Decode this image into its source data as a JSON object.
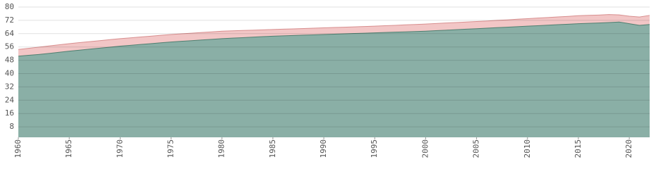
{
  "chart_data": {
    "type": "area",
    "x": [
      1960,
      1961,
      1962,
      1963,
      1964,
      1965,
      1966,
      1967,
      1968,
      1969,
      1970,
      1971,
      1972,
      1973,
      1974,
      1975,
      1976,
      1977,
      1978,
      1979,
      1980,
      1981,
      1982,
      1983,
      1984,
      1985,
      1986,
      1987,
      1988,
      1989,
      1990,
      1991,
      1992,
      1993,
      1994,
      1995,
      1996,
      1997,
      1998,
      1999,
      2000,
      2001,
      2002,
      2003,
      2004,
      2005,
      2006,
      2007,
      2008,
      2009,
      2010,
      2011,
      2012,
      2013,
      2014,
      2015,
      2016,
      2017,
      2018,
      2019,
      2020,
      2021,
      2022
    ],
    "series": [
      {
        "color": "#8aafa6",
        "values": [
          50.5,
          51.0,
          51.5,
          52.1,
          52.8,
          53.5,
          54.1,
          54.7,
          55.3,
          55.9,
          56.5,
          57.0,
          57.5,
          58.0,
          58.5,
          59.0,
          59.4,
          59.8,
          60.2,
          60.6,
          61.0,
          61.3,
          61.6,
          61.9,
          62.2,
          62.5,
          62.7,
          62.9,
          63.1,
          63.3,
          63.5,
          63.7,
          63.9,
          64.1,
          64.3,
          64.5,
          64.7,
          64.9,
          65.1,
          65.3,
          65.5,
          65.8,
          66.1,
          66.4,
          66.7,
          67.0,
          67.3,
          67.6,
          67.9,
          68.2,
          68.5,
          68.8,
          69.1,
          69.4,
          69.7,
          70.0,
          70.2,
          70.4,
          70.7,
          71.0,
          70.0,
          69.0,
          69.5
        ]
      },
      {
        "color": "#f2c6c6",
        "values": [
          54.5,
          55.2,
          55.9,
          56.6,
          57.3,
          58.0,
          58.6,
          59.2,
          59.8,
          60.4,
          61.0,
          61.5,
          62.0,
          62.5,
          63.0,
          63.5,
          63.9,
          64.3,
          64.7,
          65.1,
          65.5,
          65.7,
          65.9,
          66.1,
          66.3,
          66.5,
          66.7,
          66.9,
          67.1,
          67.3,
          67.5,
          67.7,
          67.9,
          68.1,
          68.3,
          68.5,
          68.8,
          69.0,
          69.3,
          69.5,
          69.8,
          70.1,
          70.4,
          70.7,
          71.0,
          71.3,
          71.6,
          72.0,
          72.3,
          72.7,
          73.0,
          73.4,
          73.7,
          74.1,
          74.4,
          74.8,
          75.0,
          75.2,
          75.5,
          75.3,
          74.5,
          74.0,
          75.0
        ]
      }
    ],
    "xlim": [
      1960,
      2022
    ],
    "xticks": [
      1960,
      1965,
      1970,
      1975,
      1980,
      1985,
      1990,
      1995,
      2000,
      2005,
      2010,
      2015,
      2020
    ],
    "ylim": [
      0,
      80
    ],
    "yticks": [
      8,
      16,
      24,
      32,
      40,
      48,
      56,
      64,
      72,
      80
    ],
    "grid": true
  }
}
